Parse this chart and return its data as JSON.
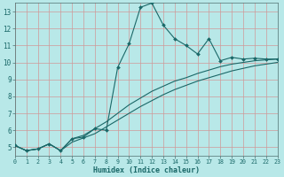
{
  "xlabel": "Humidex (Indice chaleur)",
  "background_color": "#b8e8e8",
  "grid_color": "#d09898",
  "line_color": "#1a6868",
  "xlim": [
    0,
    23
  ],
  "ylim": [
    4.5,
    13.5
  ],
  "xticks": [
    0,
    1,
    2,
    3,
    4,
    5,
    6,
    7,
    8,
    9,
    10,
    11,
    12,
    13,
    14,
    15,
    16,
    17,
    18,
    19,
    20,
    21,
    22,
    23
  ],
  "yticks": [
    5,
    6,
    7,
    8,
    9,
    10,
    11,
    12,
    13
  ],
  "line1_x": [
    0,
    1,
    2,
    3,
    4,
    5,
    6,
    7,
    8,
    9,
    10,
    11,
    12,
    13,
    14,
    15,
    16,
    17,
    18,
    19,
    20,
    21,
    22,
    23
  ],
  "line1_y": [
    5.1,
    4.8,
    4.9,
    5.2,
    4.8,
    5.5,
    5.6,
    6.1,
    6.0,
    9.7,
    11.1,
    13.25,
    13.5,
    12.2,
    11.4,
    11.0,
    10.5,
    11.4,
    10.1,
    10.3,
    10.2,
    10.25,
    10.2,
    10.2
  ],
  "line2_x": [
    0,
    1,
    2,
    3,
    4,
    5,
    6,
    7,
    8,
    9,
    10,
    11,
    12,
    13,
    14,
    15,
    16,
    17,
    18,
    19,
    20,
    21,
    22,
    23
  ],
  "line2_y": [
    5.1,
    4.8,
    4.9,
    5.2,
    4.8,
    5.5,
    5.7,
    6.1,
    6.5,
    7.0,
    7.5,
    7.9,
    8.3,
    8.6,
    8.9,
    9.1,
    9.35,
    9.55,
    9.75,
    9.9,
    10.0,
    10.1,
    10.15,
    10.2
  ],
  "line3_x": [
    0,
    1,
    2,
    3,
    4,
    5,
    6,
    7,
    8,
    9,
    10,
    11,
    12,
    13,
    14,
    15,
    16,
    17,
    18,
    19,
    20,
    21,
    22,
    23
  ],
  "line3_y": [
    5.1,
    4.8,
    4.9,
    5.2,
    4.8,
    5.3,
    5.55,
    5.8,
    6.2,
    6.6,
    7.0,
    7.4,
    7.75,
    8.1,
    8.4,
    8.65,
    8.9,
    9.1,
    9.3,
    9.5,
    9.65,
    9.8,
    9.9,
    10.0
  ]
}
